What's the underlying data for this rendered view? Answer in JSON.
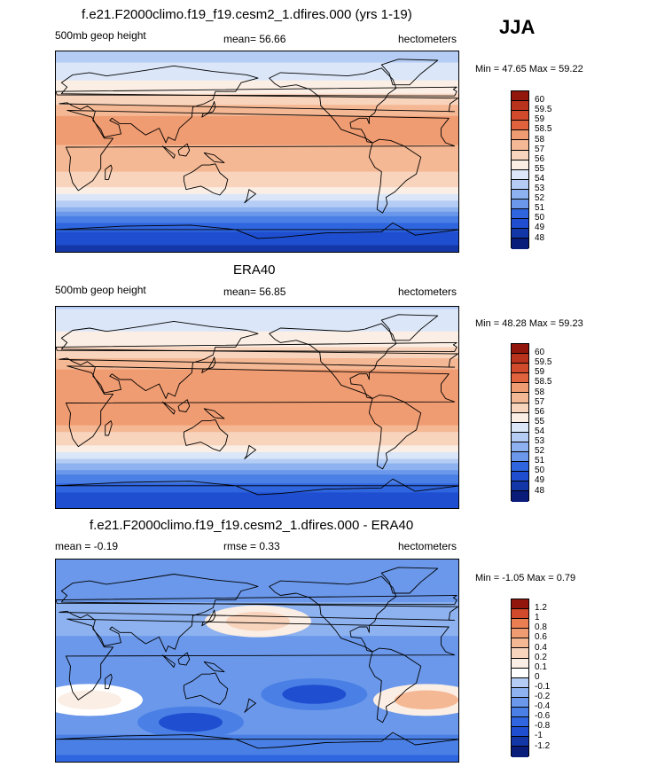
{
  "season_label": "JJA",
  "colors": {
    "palette": [
      "#0a1c7a",
      "#1437a8",
      "#1f4fd0",
      "#2f66e0",
      "#4a80e6",
      "#6b98ea",
      "#8db2ef",
      "#b5cdf4",
      "#dbe7f8",
      "#fbeee4",
      "#f8d4bd",
      "#f5b894",
      "#f09c72",
      "#ea7f52",
      "#e0633d",
      "#d14a2b",
      "#b9321c",
      "#93160d"
    ],
    "diff_palette": [
      "#0a1c7a",
      "#1437a8",
      "#1f4fd0",
      "#2f66e0",
      "#4a80e6",
      "#6b98ea",
      "#8db2ef",
      "#b5cdf4",
      "#dbe7f8",
      "#ffffff",
      "#fbeee4",
      "#f8d4bd",
      "#f5b894",
      "#f09c72",
      "#ea7f52",
      "#d14a2b",
      "#93160d"
    ],
    "coast": "#000000"
  },
  "chart_data": [
    {
      "type": "heatmap",
      "title": "f.e21.F2000climo.f19_f19.cesm2_1.dfires.000 (yrs 1-19)",
      "variable_label": "500mb geop height",
      "mean_label": "mean=  56.66",
      "units_label": "hectometers",
      "minmax_label": "Min =  47.65 Max =  59.22",
      "min": 47.65,
      "max": 59.22,
      "mean": 56.66,
      "colorbar_levels": [
        "60",
        "59.5",
        "59",
        "58.5",
        "58",
        "57",
        "56",
        "55",
        "54",
        "53",
        "52",
        "51",
        "50",
        "49",
        "48"
      ],
      "field_rows": [
        {
          "lat": 90,
          "value": 54.6
        },
        {
          "lat": 75,
          "value": 55.3
        },
        {
          "lat": 60,
          "value": 56.4
        },
        {
          "lat": 45,
          "value": 57.9
        },
        {
          "lat": 30,
          "value": 58.6
        },
        {
          "lat": 15,
          "value": 58.6
        },
        {
          "lat": 0,
          "value": 58.4
        },
        {
          "lat": -15,
          "value": 58.2
        },
        {
          "lat": -30,
          "value": 57.2
        },
        {
          "lat": -45,
          "value": 54.8
        },
        {
          "lat": -60,
          "value": 51.5
        },
        {
          "lat": -75,
          "value": 49.6
        },
        {
          "lat": -90,
          "value": 48.5
        }
      ]
    },
    {
      "type": "heatmap",
      "title": "ERA40",
      "variable_label": "500mb geop height",
      "mean_label": "mean=  56.85",
      "units_label": "hectometers",
      "minmax_label": "Min =  48.28 Max =  59.23",
      "min": 48.28,
      "max": 59.23,
      "mean": 56.85,
      "colorbar_levels": [
        "60",
        "59.5",
        "59",
        "58.5",
        "58",
        "57",
        "56",
        "55",
        "54",
        "53",
        "52",
        "51",
        "50",
        "49",
        "48"
      ],
      "field_rows": [
        {
          "lat": 90,
          "value": 55.0
        },
        {
          "lat": 75,
          "value": 55.6
        },
        {
          "lat": 60,
          "value": 56.6
        },
        {
          "lat": 45,
          "value": 58.0
        },
        {
          "lat": 30,
          "value": 58.7
        },
        {
          "lat": 15,
          "value": 58.7
        },
        {
          "lat": 0,
          "value": 58.6
        },
        {
          "lat": -15,
          "value": 58.5
        },
        {
          "lat": -30,
          "value": 57.4
        },
        {
          "lat": -45,
          "value": 55.0
        },
        {
          "lat": -60,
          "value": 51.8
        },
        {
          "lat": -75,
          "value": 49.9
        },
        {
          "lat": -90,
          "value": 49.0
        }
      ]
    },
    {
      "type": "heatmap",
      "title": "f.e21.F2000climo.f19_f19.cesm2_1.dfires.000 - ERA40",
      "variable_label": "mean =  -0.19",
      "mean_label": "rmse =   0.33",
      "units_label": "hectometers",
      "minmax_label": "Min =  -1.05 Max =   0.79",
      "min": -1.05,
      "max": 0.79,
      "mean": -0.19,
      "rmse": 0.33,
      "colorbar_levels": [
        "1.2",
        "1",
        "0.8",
        "0.6",
        "0.4",
        "0.2",
        "0.1",
        "0",
        "-0.1",
        "-0.2",
        "-0.4",
        "-0.6",
        "-0.8",
        "-1",
        "-1.2"
      ],
      "field_rows": [
        {
          "lat": 90,
          "value": -0.3
        },
        {
          "lat": 75,
          "value": -0.35
        },
        {
          "lat": 60,
          "value": -0.3
        },
        {
          "lat": 45,
          "value": -0.1
        },
        {
          "lat": 30,
          "value": -0.15
        },
        {
          "lat": 15,
          "value": -0.25
        },
        {
          "lat": 0,
          "value": -0.3
        },
        {
          "lat": -15,
          "value": -0.3
        },
        {
          "lat": -30,
          "value": -0.2
        },
        {
          "lat": -45,
          "value": -0.2
        },
        {
          "lat": -60,
          "value": -0.35
        },
        {
          "lat": -75,
          "value": -0.5
        },
        {
          "lat": -90,
          "value": -0.7
        }
      ],
      "anomalies": [
        {
          "name": "north-pacific-positive",
          "lon": 180,
          "lat": 35,
          "value": 0.6
        },
        {
          "name": "south-atlantic-positive",
          "lon": 330,
          "lat": -35,
          "value": 0.7
        },
        {
          "name": "africa-positive",
          "lon": 30,
          "lat": -35,
          "value": 0.4
        },
        {
          "name": "south-pacific-negative",
          "lon": 230,
          "lat": -30,
          "value": -0.8
        },
        {
          "name": "southern-ocean-negative",
          "lon": 120,
          "lat": -55,
          "value": -0.9
        }
      ]
    }
  ]
}
